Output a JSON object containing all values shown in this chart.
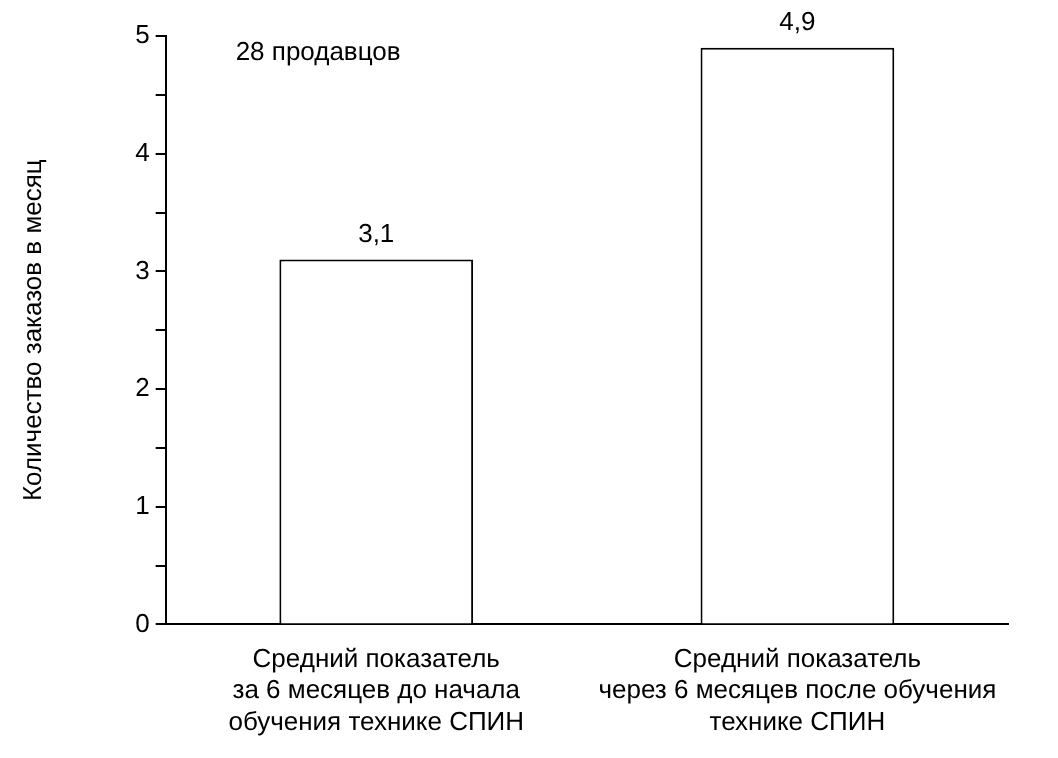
{
  "chart_data": {
    "type": "bar",
    "ylabel": "Количество заказов в месяц",
    "categories": [
      "Средний показатель\nза 6 месяцев до начала\nобучения технике СПИН",
      "Средний показатель\nчерез 6 месяцев после обучения\nтехнике СПИН"
    ],
    "values": [
      3.1,
      4.9
    ],
    "value_labels": [
      "3,1",
      "4,9"
    ],
    "color": "#ffffff",
    "ylim": [
      0,
      5
    ],
    "yticks": [
      0,
      {
        "value": 0.5,
        "label": null
      },
      1,
      {
        "value": 1.5,
        "label": null
      },
      2,
      {
        "value": 2.5,
        "label": null
      },
      3,
      {
        "value": 3.5,
        "label": null
      },
      4,
      {
        "value": 4.5,
        "label": null
      },
      5
    ],
    "annotations": [
      "28 продавцов"
    ],
    "grid": false,
    "legend": false
  }
}
